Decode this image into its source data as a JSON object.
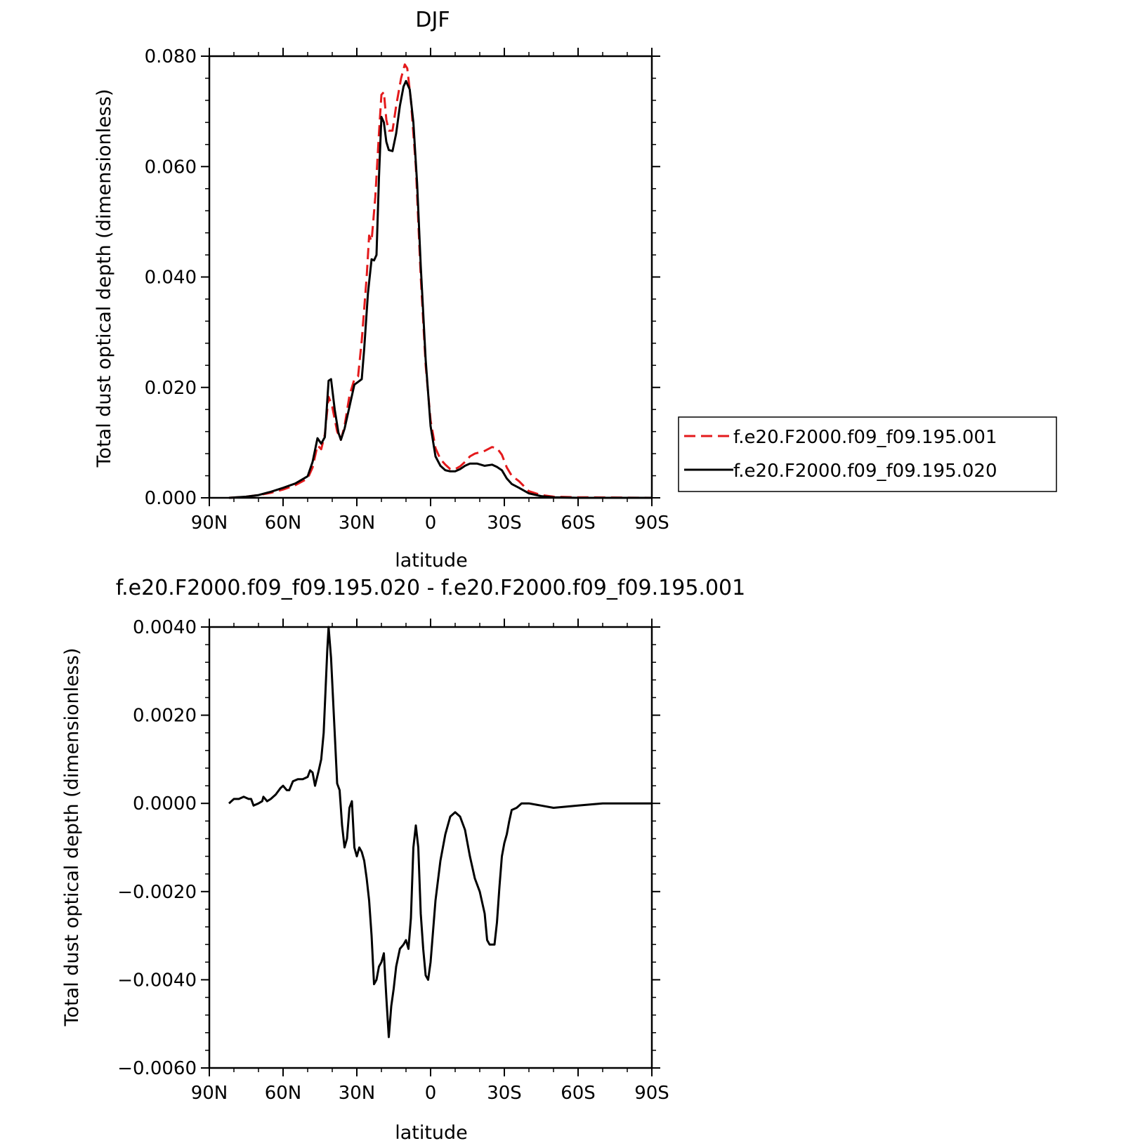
{
  "chart_data": [
    {
      "type": "line",
      "title": "DJF",
      "xlabel": "latitude",
      "ylabel": "Total dust optical depth (dimensionless)",
      "xlim": [
        90,
        -90
      ],
      "ylim": [
        0,
        0.08
      ],
      "xticks": [
        {
          "value": 90,
          "label": "90N"
        },
        {
          "value": 60,
          "label": "60N"
        },
        {
          "value": 30,
          "label": "30N"
        },
        {
          "value": 0,
          "label": "0"
        },
        {
          "value": -30,
          "label": "30S"
        },
        {
          "value": -60,
          "label": "60S"
        },
        {
          "value": -90,
          "label": "90S"
        }
      ],
      "yticks": [
        {
          "value": 0,
          "label": "0.000"
        },
        {
          "value": 0.02,
          "label": "0.020"
        },
        {
          "value": 0.04,
          "label": "0.040"
        },
        {
          "value": 0.06,
          "label": "0.060"
        },
        {
          "value": 0.08,
          "label": "0.080"
        }
      ],
      "legend_position": "right",
      "series": [
        {
          "name": "f.e20.F2000.f09_f09.195.001",
          "color": "#e41a1c",
          "dash": true,
          "points": [
            [
              82,
              0
            ],
            [
              75,
              0.0002
            ],
            [
              70,
              0.0005
            ],
            [
              65,
              0.0009
            ],
            [
              60,
              0.0015
            ],
            [
              55,
              0.0023
            ],
            [
              50,
              0.0035
            ],
            [
              48,
              0.0055
            ],
            [
              46,
              0.0095
            ],
            [
              44.5,
              0.0088
            ],
            [
              43,
              0.0115
            ],
            [
              41.5,
              0.0183
            ],
            [
              40,
              0.0165
            ],
            [
              38,
              0.012
            ],
            [
              36.5,
              0.0105
            ],
            [
              35,
              0.013
            ],
            [
              33,
              0.0185
            ],
            [
              31,
              0.0215
            ],
            [
              29.5,
              0.022
            ],
            [
              28,
              0.0285
            ],
            [
              26,
              0.04
            ],
            [
              25,
              0.0475
            ],
            [
              24,
              0.0465
            ],
            [
              22.5,
              0.0545
            ],
            [
              21,
              0.066
            ],
            [
              20,
              0.073
            ],
            [
              19,
              0.0735
            ],
            [
              18,
              0.0685
            ],
            [
              17,
              0.0665
            ],
            [
              15.5,
              0.0665
            ],
            [
              14,
              0.071
            ],
            [
              12,
              0.076
            ],
            [
              10.5,
              0.0785
            ],
            [
              9.5,
              0.0778
            ],
            [
              8,
              0.072
            ],
            [
              6,
              0.06
            ],
            [
              4,
              0.04
            ],
            [
              2,
              0.024
            ],
            [
              0,
              0.014
            ],
            [
              -2,
              0.009
            ],
            [
              -4,
              0.007
            ],
            [
              -6,
              0.006
            ],
            [
              -8,
              0.0052
            ],
            [
              -10,
              0.0052
            ],
            [
              -12,
              0.0057
            ],
            [
              -14,
              0.0065
            ],
            [
              -16,
              0.0075
            ],
            [
              -18,
              0.008
            ],
            [
              -22,
              0.0085
            ],
            [
              -25,
              0.0092
            ],
            [
              -27,
              0.009
            ],
            [
              -29,
              0.0078
            ],
            [
              -31,
              0.0055
            ],
            [
              -33,
              0.004
            ],
            [
              -36,
              0.003
            ],
            [
              -40,
              0.0012
            ],
            [
              -45,
              0.0005
            ],
            [
              -50,
              0.0002
            ],
            [
              -60,
              0.0001
            ],
            [
              -90,
              0
            ]
          ]
        },
        {
          "name": "f.e20.F2000.f09_f09.195.020",
          "color": "#000000",
          "dash": false,
          "points": [
            [
              82,
              0
            ],
            [
              75,
              0.0002
            ],
            [
              70,
              0.0005
            ],
            [
              65,
              0.0011
            ],
            [
              60,
              0.0018
            ],
            [
              55,
              0.0026
            ],
            [
              50,
              0.0039
            ],
            [
              48,
              0.0065
            ],
            [
              46,
              0.0108
            ],
            [
              44.5,
              0.0098
            ],
            [
              43,
              0.011
            ],
            [
              41.5,
              0.0212
            ],
            [
              40.5,
              0.0215
            ],
            [
              39,
              0.016
            ],
            [
              37.5,
              0.0118
            ],
            [
              36.5,
              0.0105
            ],
            [
              35,
              0.0125
            ],
            [
              33,
              0.0165
            ],
            [
              31,
              0.0205
            ],
            [
              29.5,
              0.021
            ],
            [
              28,
              0.0215
            ],
            [
              27,
              0.027
            ],
            [
              25.5,
              0.037
            ],
            [
              24,
              0.0432
            ],
            [
              23,
              0.043
            ],
            [
              22,
              0.044
            ],
            [
              21,
              0.058
            ],
            [
              20,
              0.069
            ],
            [
              19,
              0.068
            ],
            [
              18,
              0.0645
            ],
            [
              17,
              0.063
            ],
            [
              15.5,
              0.0628
            ],
            [
              14,
              0.066
            ],
            [
              12.5,
              0.071
            ],
            [
              11,
              0.0745
            ],
            [
              10,
              0.0755
            ],
            [
              8.5,
              0.074
            ],
            [
              7,
              0.068
            ],
            [
              5.5,
              0.057
            ],
            [
              4,
              0.042
            ],
            [
              2,
              0.025
            ],
            [
              0,
              0.013
            ],
            [
              -2,
              0.0075
            ],
            [
              -4,
              0.0058
            ],
            [
              -6,
              0.005
            ],
            [
              -8,
              0.0048
            ],
            [
              -10,
              0.0048
            ],
            [
              -12,
              0.0052
            ],
            [
              -14,
              0.0058
            ],
            [
              -16,
              0.0062
            ],
            [
              -19,
              0.0062
            ],
            [
              -22,
              0.0058
            ],
            [
              -25,
              0.006
            ],
            [
              -27,
              0.0056
            ],
            [
              -29,
              0.005
            ],
            [
              -31,
              0.0035
            ],
            [
              -33,
              0.0025
            ],
            [
              -36,
              0.0018
            ],
            [
              -40,
              0.0008
            ],
            [
              -45,
              0.0003
            ],
            [
              -50,
              0.0001
            ],
            [
              -60,
              0
            ],
            [
              -90,
              0
            ]
          ]
        }
      ]
    },
    {
      "type": "line",
      "title": "f.e20.F2000.f09_f09.195.020 - f.e20.F2000.f09_f09.195.001",
      "xlabel": "latitude",
      "ylabel": "Total dust optical depth (dimensionless)",
      "xlim": [
        90,
        -90
      ],
      "ylim": [
        -0.006,
        0.004
      ],
      "xticks": [
        {
          "value": 90,
          "label": "90N"
        },
        {
          "value": 60,
          "label": "60N"
        },
        {
          "value": 30,
          "label": "30N"
        },
        {
          "value": 0,
          "label": "0"
        },
        {
          "value": -30,
          "label": "30S"
        },
        {
          "value": -60,
          "label": "60S"
        },
        {
          "value": -90,
          "label": "90S"
        }
      ],
      "yticks": [
        {
          "value": -0.006,
          "label": "−0.0060"
        },
        {
          "value": -0.004,
          "label": "−0.0040"
        },
        {
          "value": -0.002,
          "label": "−0.0020"
        },
        {
          "value": 0,
          "label": "0.0000"
        },
        {
          "value": 0.002,
          "label": "0.0020"
        },
        {
          "value": 0.004,
          "label": "0.0040"
        }
      ],
      "series": [
        {
          "color": "#000000",
          "dash": false,
          "points": [
            [
              82,
              0
            ],
            [
              80,
              0.0001
            ],
            [
              78,
              0.0001
            ],
            [
              76,
              0.00015
            ],
            [
              74,
              0.0001
            ],
            [
              73,
              0.0001
            ],
            [
              72,
              -5e-05
            ],
            [
              70,
              0
            ],
            [
              68.5,
              5e-05
            ],
            [
              68,
              0.00015
            ],
            [
              66.5,
              5e-05
            ],
            [
              65,
              0.0001
            ],
            [
              63,
              0.0002
            ],
            [
              61,
              0.00035
            ],
            [
              60,
              0.0004
            ],
            [
              58.5,
              0.0003
            ],
            [
              57.5,
              0.0003
            ],
            [
              56,
              0.0005
            ],
            [
              54,
              0.00055
            ],
            [
              52,
              0.00055
            ],
            [
              50,
              0.0006
            ],
            [
              49,
              0.00075
            ],
            [
              48,
              0.0007
            ],
            [
              47,
              0.0004
            ],
            [
              45.5,
              0.00075
            ],
            [
              44.5,
              0.001
            ],
            [
              43.5,
              0.0016
            ],
            [
              42,
              0.0035
            ],
            [
              41.5,
              0.004
            ],
            [
              40.5,
              0.0033
            ],
            [
              39,
              0.0016
            ],
            [
              38,
              0.00045
            ],
            [
              37,
              0.0003
            ],
            [
              36,
              -0.0005
            ],
            [
              35,
              -0.001
            ],
            [
              34,
              -0.0008
            ],
            [
              33,
              -0.0001
            ],
            [
              32,
              5e-05
            ],
            [
              31,
              -0.001
            ],
            [
              30,
              -0.0012
            ],
            [
              29,
              -0.001
            ],
            [
              28,
              -0.0011
            ],
            [
              27,
              -0.0013
            ],
            [
              26,
              -0.0017
            ],
            [
              25,
              -0.0022
            ],
            [
              24,
              -0.003
            ],
            [
              23,
              -0.0041
            ],
            [
              22,
              -0.004
            ],
            [
              21,
              -0.0037
            ],
            [
              20,
              -0.0036
            ],
            [
              19,
              -0.0034
            ],
            [
              18,
              -0.0044
            ],
            [
              17,
              -0.0053
            ],
            [
              16,
              -0.0046
            ],
            [
              15,
              -0.0042
            ],
            [
              14,
              -0.0037
            ],
            [
              12.5,
              -0.0033
            ],
            [
              11,
              -0.0032
            ],
            [
              10,
              -0.0031
            ],
            [
              9,
              -0.0033
            ],
            [
              8,
              -0.0026
            ],
            [
              7,
              -0.001
            ],
            [
              6,
              -0.0005
            ],
            [
              5,
              -0.001
            ],
            [
              4,
              -0.0025
            ],
            [
              3,
              -0.0033
            ],
            [
              2,
              -0.0039
            ],
            [
              1,
              -0.004
            ],
            [
              0,
              -0.0036
            ],
            [
              -2,
              -0.0022
            ],
            [
              -4,
              -0.0013
            ],
            [
              -6,
              -0.0007
            ],
            [
              -8,
              -0.0003
            ],
            [
              -10,
              -0.0002
            ],
            [
              -12,
              -0.0003
            ],
            [
              -14,
              -0.0006
            ],
            [
              -16,
              -0.0012
            ],
            [
              -18,
              -0.0017
            ],
            [
              -20,
              -0.002
            ],
            [
              -22,
              -0.0025
            ],
            [
              -23,
              -0.0031
            ],
            [
              -24,
              -0.0032
            ],
            [
              -25,
              -0.0032
            ],
            [
              -26,
              -0.0032
            ],
            [
              -27,
              -0.0027
            ],
            [
              -28,
              -0.0019
            ],
            [
              -29,
              -0.0012
            ],
            [
              -30,
              -0.0009
            ],
            [
              -31,
              -0.0007
            ],
            [
              -32,
              -0.0004
            ],
            [
              -33,
              -0.00015
            ],
            [
              -35,
              -0.0001
            ],
            [
              -37,
              0
            ],
            [
              -40,
              0
            ],
            [
              -45,
              -5e-05
            ],
            [
              -50,
              -0.0001
            ],
            [
              -60,
              -5e-05
            ],
            [
              -70,
              0
            ],
            [
              -90,
              0
            ]
          ]
        }
      ]
    }
  ]
}
